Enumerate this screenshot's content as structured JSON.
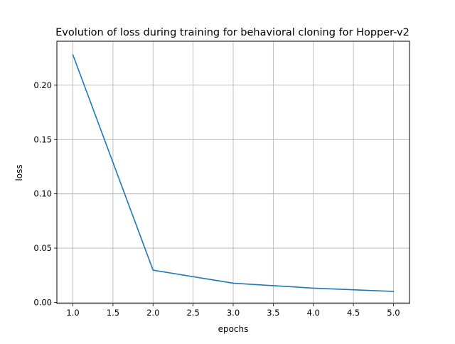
{
  "chart_data": {
    "type": "line",
    "title": "Evolution of loss during training for behavioral cloning for Hopper-v2",
    "xlabel": "epochs",
    "ylabel": "loss",
    "xlim": [
      0.8,
      5.2
    ],
    "ylim": [
      -0.001,
      0.2405
    ],
    "grid": true,
    "x_ticks": [
      1.0,
      1.5,
      2.0,
      2.5,
      3.0,
      3.5,
      4.0,
      4.5,
      5.0
    ],
    "x_tick_labels": [
      "1.0",
      "1.5",
      "2.0",
      "2.5",
      "3.0",
      "3.5",
      "4.0",
      "4.5",
      "5.0"
    ],
    "y_ticks": [
      0.0,
      0.05,
      0.1,
      0.15,
      0.2
    ],
    "y_tick_labels": [
      "0.00",
      "0.05",
      "0.10",
      "0.15",
      "0.20"
    ],
    "series": [
      {
        "color": "#1f77b4",
        "x": [
          1,
          2,
          3,
          4,
          5
        ],
        "y": [
          0.228,
          0.0297,
          0.0177,
          0.0131,
          0.0101
        ]
      }
    ]
  }
}
